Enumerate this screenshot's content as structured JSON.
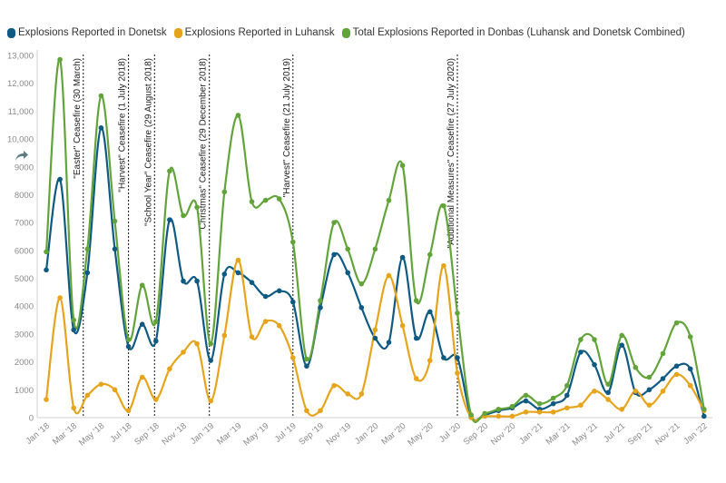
{
  "chart_data": {
    "type": "line",
    "x": [
      "Jan '18",
      "Feb '18",
      "Mar '18",
      "Apr '18",
      "May '18",
      "Jun '18",
      "Jul '18",
      "Aug '18",
      "Sep '18",
      "Oct '18",
      "Nov '18",
      "Dec '18",
      "Jan '19",
      "Feb '19",
      "Mar '19",
      "Apr '19",
      "May '19",
      "Jun '19",
      "Jul '19",
      "Aug '19",
      "Sep '19",
      "Oct '19",
      "Nov '19",
      "Dec '19",
      "Jan '20",
      "Feb '20",
      "Mar '20",
      "Apr '20",
      "May '20",
      "Jun '20",
      "Jul '20",
      "Aug '20",
      "Sep '20",
      "Oct '20",
      "Nov '20",
      "Dec '20",
      "Jan '21",
      "Feb '21",
      "Mar '21",
      "Apr '21",
      "May '21",
      "Jun '21",
      "Jul '21",
      "Aug '21",
      "Sep '21",
      "Oct '21",
      "Nov '21",
      "Dec '21",
      "Jan '22"
    ],
    "x_tick_labels": [
      "Jan '18",
      "Mar '18",
      "May '18",
      "Jul '18",
      "Sep '18",
      "Nov '18",
      "Jan '19",
      "Mar '19",
      "May '19",
      "Jul '19",
      "Sep '19",
      "Nov '19",
      "Jan '20",
      "Mar '20",
      "May '20",
      "Jul '20",
      "Sep '20",
      "Nov '20",
      "Jan '21",
      "Mar '21",
      "May '21",
      "Jul '21",
      "Sep '21",
      "Nov '21",
      "Jan '22"
    ],
    "y_ticks": [
      "0",
      "1000",
      "2000",
      "3000",
      "4000",
      "5000",
      "6000",
      "7000",
      "8000",
      "9000",
      "10,000",
      "11,000",
      "12,000",
      "13,000"
    ],
    "ylim": [
      0,
      13000
    ],
    "grid": false,
    "legend_position": "top-left",
    "series": [
      {
        "name": "Explosions Reported in Donetsk",
        "color": "#0e5a82",
        "values": [
          5300,
          8550,
          3150,
          5200,
          10400,
          6050,
          2550,
          3350,
          2750,
          7100,
          4900,
          4900,
          2050,
          5150,
          5200,
          4850,
          4350,
          4550,
          4150,
          1850,
          3950,
          5850,
          5200,
          3950,
          2850,
          2700,
          5750,
          2850,
          3800,
          2150,
          2150,
          50,
          100,
          250,
          350,
          600,
          300,
          500,
          800,
          2350,
          1900,
          900,
          2600,
          900,
          1000,
          1400,
          1850,
          1750,
          50
        ]
      },
      {
        "name": "Explosions Reported in Luhansk",
        "color": "#e6a41b",
        "values": [
          650,
          4300,
          350,
          800,
          1200,
          1000,
          250,
          1450,
          650,
          1750,
          2350,
          2650,
          600,
          2950,
          5650,
          2900,
          3450,
          3300,
          2150,
          250,
          250,
          1150,
          850,
          850,
          3150,
          5100,
          3300,
          1400,
          2050,
          5450,
          1600,
          0,
          50,
          50,
          50,
          200,
          200,
          200,
          350,
          450,
          950,
          650,
          300,
          950,
          450,
          950,
          1550,
          1150,
          250
        ]
      },
      {
        "name": "Total Explosions Reported in Donbas (Luhansk and Donetsk Combined)",
        "color": "#62a43a",
        "values": [
          5950,
          12850,
          3500,
          6050,
          11550,
          7050,
          2800,
          4750,
          3450,
          8850,
          7250,
          7550,
          2650,
          8100,
          10850,
          7750,
          7800,
          7850,
          6300,
          2100,
          4200,
          7000,
          6050,
          4800,
          6050,
          7800,
          9050,
          4200,
          5850,
          7600,
          3750,
          100,
          150,
          300,
          400,
          800,
          500,
          700,
          1150,
          2800,
          2800,
          1200,
          2950,
          1800,
          1450,
          2300,
          3400,
          2900,
          300
        ]
      }
    ],
    "annotations": [
      {
        "label": "\"Easter\" Ceasefire (30 March)",
        "x": "Mar '18"
      },
      {
        "label": "\"Harvest\" Ceasefire (1 July 2018)",
        "x": "Jul '18"
      },
      {
        "label": "\"School Year\" Ceasefire (29 August 2018)",
        "x": "Aug '18"
      },
      {
        "label": "\"Christmas\" Ceasefire (29 December 2018)",
        "x": "Dec '18"
      },
      {
        "label": "\"Harvest\" Ceasefire (21 July 2019)",
        "x": "Jul '19"
      },
      {
        "label": "\"Additional Measures\" Ceasefire (27 July 2020)",
        "x": "Jul '20"
      }
    ]
  },
  "icons": {
    "share": "share-arrow-icon"
  }
}
